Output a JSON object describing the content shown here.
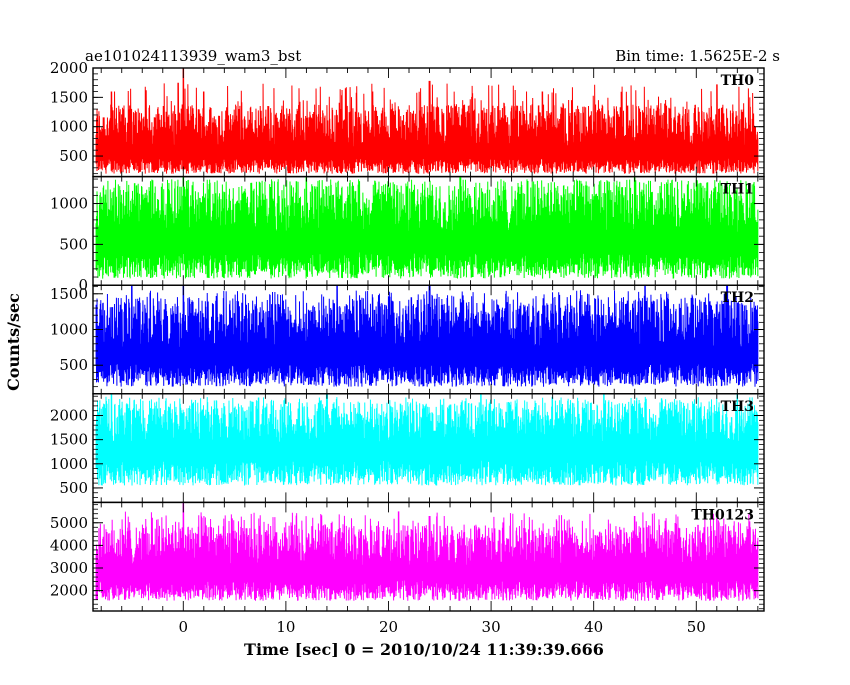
{
  "chart_data": {
    "type": "line",
    "title_left": "ae101024113939_wam3_bst",
    "title_right": "Bin time: 1.5625E-2 s",
    "xlabel": "Time [sec] 0 = 2010/10/24 11:39:39.666",
    "ylabel": "Counts/sec",
    "xlim": [
      -8.8,
      56.6
    ],
    "x_ticks": [
      0,
      10,
      20,
      30,
      40,
      50
    ],
    "grid": false,
    "panels": [
      {
        "label": "TH0",
        "color": "#ff0000",
        "ylim": [
          150,
          2000
        ],
        "y_ticks": [
          500,
          1000,
          1500,
          2000
        ],
        "baseline": 640,
        "noise_low": 200,
        "noise_high": 1380,
        "spikes": [
          [
            0.0,
            2000
          ],
          [
            -0.5,
            1750
          ],
          [
            2.0,
            1600
          ],
          [
            24.0,
            1780
          ],
          [
            52.0,
            1720
          ],
          [
            -7.0,
            1600
          ],
          [
            35.0,
            1600
          ]
        ]
      },
      {
        "label": "TH1",
        "color": "#00ff00",
        "ylim": [
          0,
          1330
        ],
        "y_ticks": [
          0,
          500,
          1000
        ],
        "baseline": 640,
        "noise_low": 80,
        "noise_high": 1250,
        "spikes": [
          [
            0.0,
            1330
          ],
          [
            12.0,
            1330
          ],
          [
            27.0,
            1330
          ],
          [
            44.0,
            1330
          ]
        ]
      },
      {
        "label": "TH2",
        "color": "#0000ff",
        "ylim": [
          100,
          1620
        ],
        "y_ticks": [
          500,
          1000,
          1500
        ],
        "baseline": 740,
        "noise_low": 200,
        "noise_high": 1450,
        "spikes": [
          [
            -5.0,
            1620
          ],
          [
            0.0,
            1620
          ],
          [
            15.0,
            1620
          ],
          [
            24.0,
            1620
          ],
          [
            45.0,
            1620
          ],
          [
            53.0,
            1620
          ]
        ]
      },
      {
        "label": "TH3",
        "color": "#00ffff",
        "ylim": [
          200,
          2450
        ],
        "y_ticks": [
          500,
          1000,
          1500,
          2000
        ],
        "baseline": 1430,
        "noise_low": 550,
        "noise_high": 2300,
        "spikes": [
          [
            -7.0,
            2450
          ],
          [
            14.0,
            2450
          ],
          [
            29.0,
            2450
          ],
          [
            41.0,
            2450
          ],
          [
            54.0,
            2450
          ]
        ]
      },
      {
        "label": "TH0123",
        "color": "#ff00ff",
        "ylim": [
          1100,
          5900
        ],
        "y_ticks": [
          2000,
          3000,
          4000,
          5000
        ],
        "baseline": 3100,
        "noise_low": 1550,
        "noise_high": 4900,
        "spikes": [
          [
            0.0,
            5900
          ],
          [
            21.0,
            5500
          ],
          [
            24.0,
            5300
          ],
          [
            44.0,
            5300
          ],
          [
            52.0,
            5200
          ]
        ]
      }
    ]
  }
}
